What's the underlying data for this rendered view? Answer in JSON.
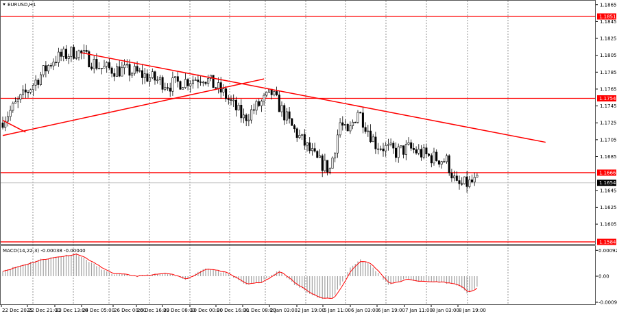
{
  "chart_data": {
    "type": "candlestick",
    "symbol_label": "EURUSD,H1",
    "price_axis": {
      "range": [
        1.1575,
        1.1872
      ],
      "ticks": [
        "1.1865",
        "1.1845",
        "1.1825",
        "1.1805",
        "1.1785",
        "1.1765",
        "1.1745",
        "1.1725",
        "1.1705",
        "1.1685",
        "1.1645",
        "1.1625",
        "1.1605"
      ]
    },
    "time_axis": {
      "labels": [
        "22 Dec 2025",
        "22 Dec 21:00",
        "23 Dec 13:00",
        "24 Dec 05:00",
        "26 Dec 00:00",
        "26 Dec 16:00",
        "29 Dec 08:00",
        "30 Dec 00:00",
        "30 Dec 16:00",
        "31 Dec 08:00",
        "2 Jan 03:00",
        "2 Jan 19:00",
        "5 Jan 11:00",
        "6 Jan 03:00",
        "6 Jan 19:00",
        "7 Jan 11:00",
        "8 Jan 03:00",
        "8 Jan 19:00"
      ]
    },
    "grid": "vertical dashed",
    "levels": [
      {
        "price": 1.1851,
        "label": "1.1851"
      },
      {
        "price": 1.1754,
        "label": "1.1754"
      },
      {
        "price": 1.1666,
        "label": "1.1666"
      },
      {
        "price": 1.1584,
        "label": "1.1584"
      }
    ],
    "current_price": {
      "price": 1.1654,
      "label": "1.1654"
    },
    "price_path_bar_close": [
      [
        0,
        1.1725
      ],
      [
        10,
        1.176
      ],
      [
        21,
        1.18
      ],
      [
        30,
        1.181
      ],
      [
        40,
        1.179
      ],
      [
        53,
        1.1785
      ],
      [
        67,
        1.177
      ],
      [
        80,
        1.178
      ],
      [
        88,
        1.176
      ],
      [
        96,
        1.173
      ],
      [
        107,
        1.176
      ],
      [
        115,
        1.172
      ],
      [
        125,
        1.168
      ],
      [
        130,
        1.167
      ],
      [
        134,
        1.1725
      ],
      [
        137,
        1.171
      ],
      [
        141,
        1.174
      ],
      [
        148,
        1.17
      ],
      [
        156,
        1.169
      ],
      [
        161,
        1.1695
      ],
      [
        169,
        1.1685
      ],
      [
        176,
        1.168
      ],
      [
        180,
        1.165
      ],
      [
        187,
        1.1655
      ]
    ],
    "trendlines": [
      {
        "from": [
          31,
          1.1808
        ],
        "to": [
          214,
          1.1702
        ]
      },
      {
        "from": [
          0,
          1.171
        ],
        "to": [
          103,
          1.1777
        ]
      },
      {
        "from": [
          0,
          1.1728
        ],
        "to": [
          9,
          1.1714
        ]
      }
    ],
    "macd": {
      "label": "MACD(14,22,3) -0.00038 -0.00040",
      "ticks": [
        "0.00092",
        "0.00",
        "-0.00093"
      ],
      "range": [
        -0.00093,
        0.00092
      ],
      "histogram_path": [
        [
          0,
          0.0002
        ],
        [
          15,
          0.0006
        ],
        [
          29,
          0.0008
        ],
        [
          42,
          0.0001
        ],
        [
          53,
          0.0
        ],
        [
          64,
          0.0001
        ],
        [
          72,
          -0.0001
        ],
        [
          80,
          0.0003
        ],
        [
          88,
          0.0001
        ],
        [
          96,
          -0.0003
        ],
        [
          102,
          -0.0002
        ],
        [
          109,
          0.0002
        ],
        [
          115,
          -0.0003
        ],
        [
          125,
          -0.0008
        ],
        [
          130,
          -0.0008
        ],
        [
          137,
          0.0003
        ],
        [
          141,
          0.0006
        ],
        [
          145,
          0.0004
        ],
        [
          152,
          -0.0003
        ],
        [
          159,
          -0.0001
        ],
        [
          165,
          -0.0002
        ],
        [
          172,
          -0.0002
        ],
        [
          179,
          -0.0003
        ],
        [
          183,
          -0.0006
        ],
        [
          187,
          -0.0004
        ]
      ]
    },
    "colors": {
      "levels": "#ff0000",
      "trendlines": "#ff0000",
      "signal": "#ff0000",
      "histogram": "#a0a0a0",
      "current_price_bg": "#000000"
    }
  }
}
